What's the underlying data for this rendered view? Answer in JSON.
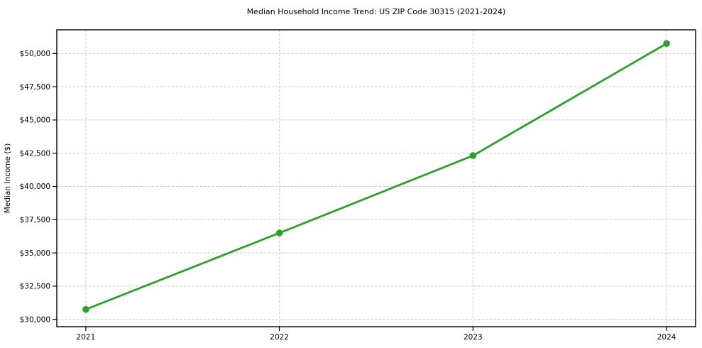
{
  "chart_data": {
    "type": "line",
    "title": "Median Household Income Trend: US ZIP Code 30315 (2021-2024)",
    "xlabel": "",
    "ylabel": "Median Income ($)",
    "x": [
      2021,
      2022,
      2023,
      2024
    ],
    "categories": [
      "2021",
      "2022",
      "2023",
      "2024"
    ],
    "series": [
      {
        "name": "Median Household Income",
        "values": [
          30750,
          36500,
          42320,
          50750
        ],
        "color": "#2ca02c",
        "marker": "circle"
      }
    ],
    "y_ticks": [
      30000,
      32500,
      35000,
      37500,
      40000,
      42500,
      45000,
      47500,
      50000
    ],
    "y_tick_labels": [
      "$30,000",
      "$32,500",
      "$35,000",
      "$37,500",
      "$40,000",
      "$42,500",
      "$45,000",
      "$47,500",
      "$50,000"
    ],
    "x_tick_labels": [
      "2021",
      "2022",
      "2023",
      "2024"
    ],
    "xlim": [
      2020.85,
      2024.15
    ],
    "ylim": [
      29450,
      51780
    ],
    "grid": true,
    "grid_style": "dashed",
    "legend": false,
    "colors": {
      "line": "#2ca02c",
      "grid": "#c9c9c9",
      "spine": "#000000",
      "text": "#000000",
      "background": "#ffffff"
    }
  }
}
